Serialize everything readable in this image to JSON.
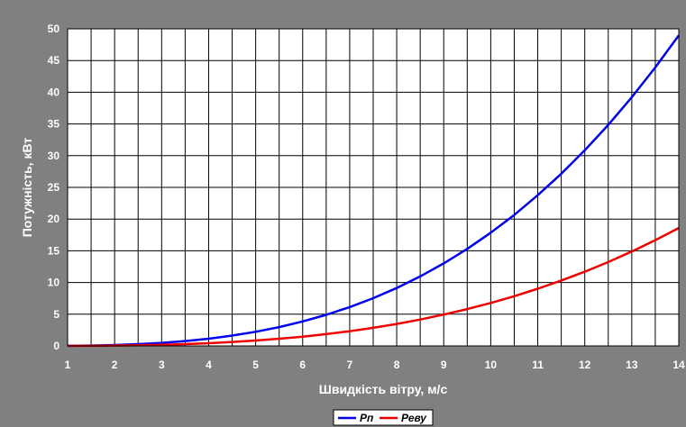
{
  "chart_data": {
    "type": "line",
    "xlabel": "Швидкість вітру, м/с",
    "ylabel": "Потужність, кВт",
    "xlim": [
      1,
      14
    ],
    "ylim": [
      0,
      50
    ],
    "x_ticks": [
      "1",
      "2",
      "3",
      "4",
      "5",
      "6",
      "7",
      "8",
      "9",
      "10",
      "11",
      "12",
      "13",
      "14"
    ],
    "y_ticks": [
      "0",
      "5",
      "10",
      "15",
      "20",
      "25",
      "30",
      "35",
      "40",
      "45",
      "50"
    ],
    "grid": true,
    "legend": "bottom-center",
    "x": [
      1,
      1.5,
      2,
      2.5,
      3,
      3.5,
      4,
      4.5,
      5,
      5.5,
      6,
      6.5,
      7,
      7.5,
      8,
      8.5,
      9,
      9.5,
      10,
      10.5,
      11,
      11.5,
      12,
      12.5,
      13,
      13.5,
      14
    ],
    "series": [
      {
        "name": "Рп",
        "color": "#0000ee",
        "values": [
          0.02,
          0.06,
          0.14,
          0.28,
          0.48,
          0.77,
          1.14,
          1.63,
          2.23,
          2.97,
          3.86,
          4.9,
          6.12,
          7.53,
          9.14,
          10.96,
          13.01,
          15.3,
          17.85,
          20.66,
          23.76,
          27.15,
          30.85,
          34.86,
          39.21,
          43.91,
          48.97
        ]
      },
      {
        "name": "Реву",
        "color": "#ee0000",
        "values": [
          0.01,
          0.02,
          0.05,
          0.11,
          0.18,
          0.29,
          0.43,
          0.62,
          0.85,
          1.13,
          1.46,
          1.86,
          2.32,
          2.86,
          3.47,
          4.16,
          4.94,
          5.81,
          6.78,
          7.84,
          9.02,
          10.31,
          11.71,
          13.23,
          14.89,
          16.67,
          18.59
        ]
      }
    ]
  }
}
